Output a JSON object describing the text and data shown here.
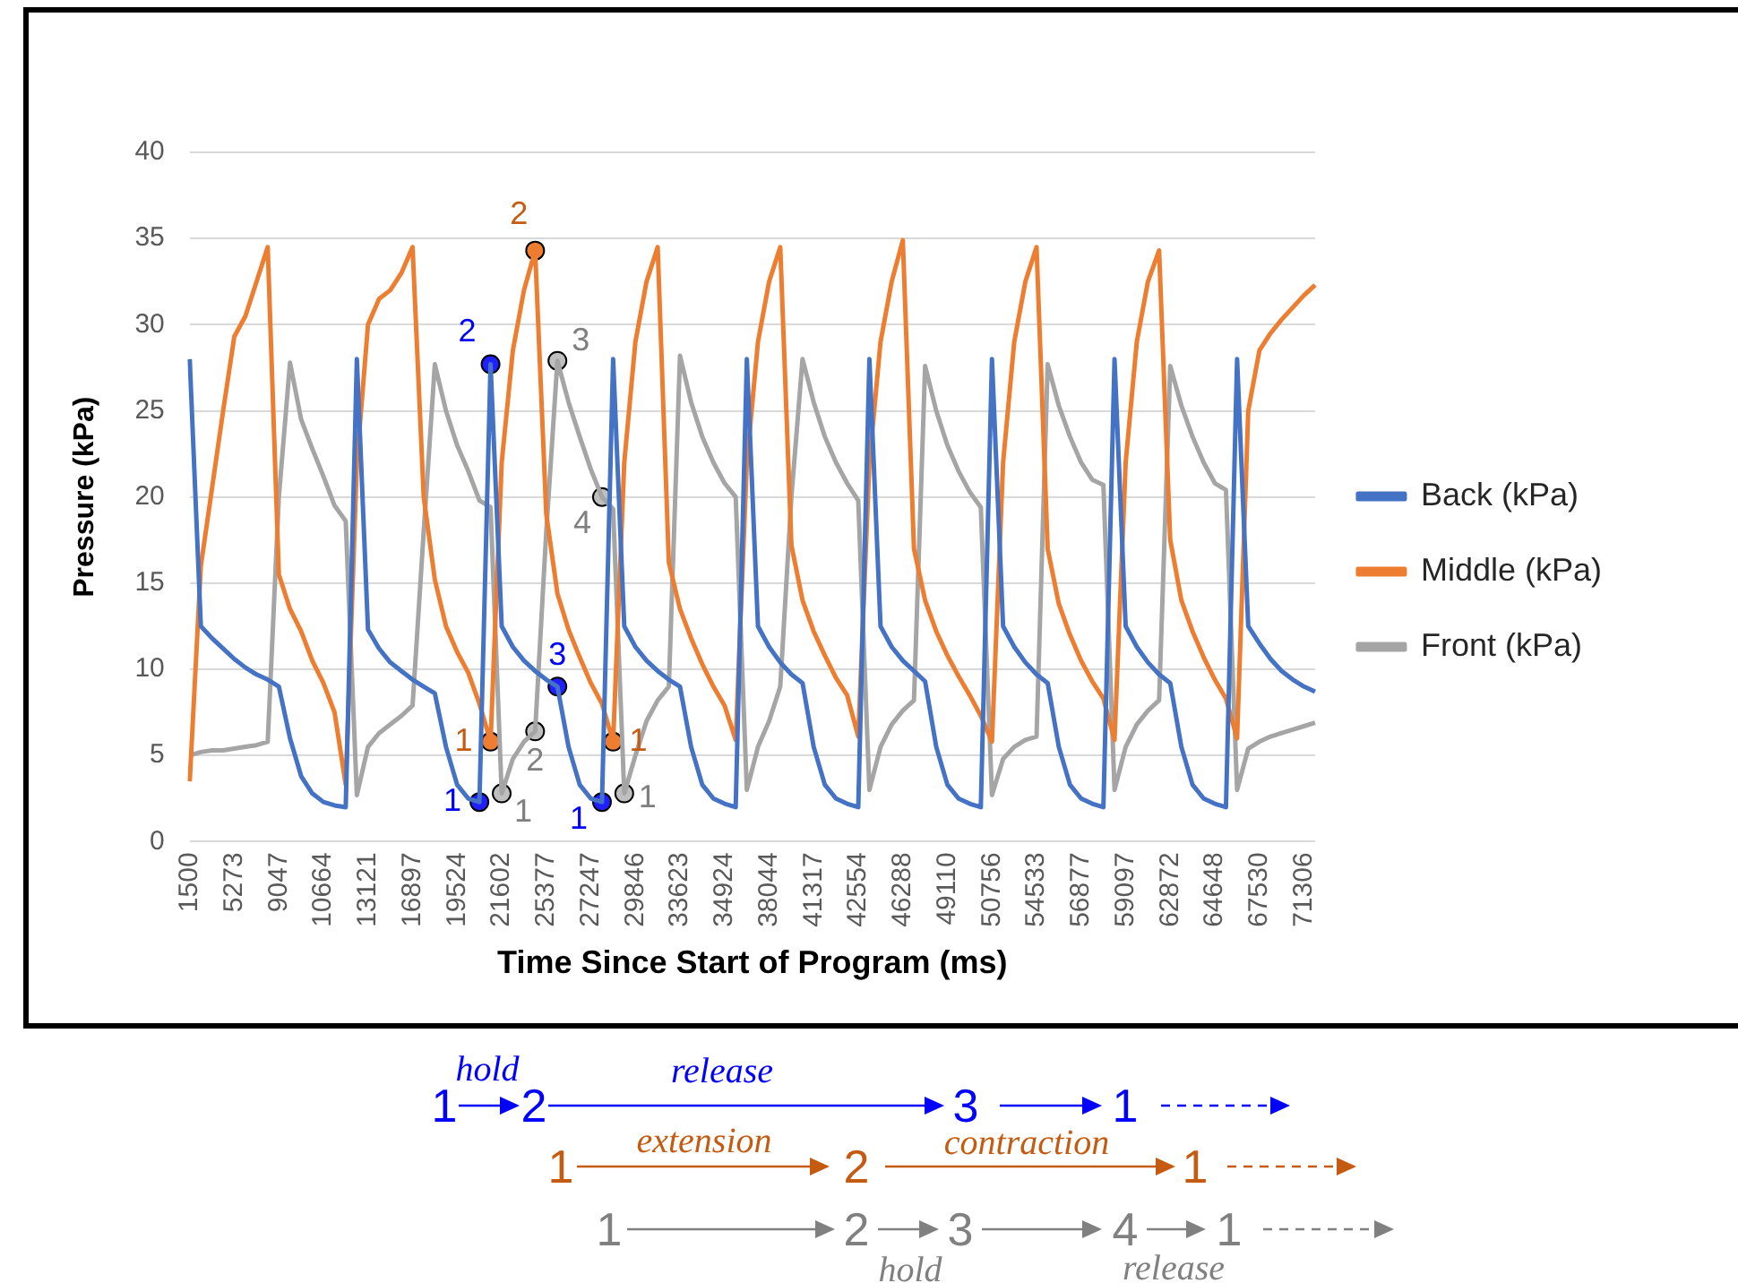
{
  "chart_data": {
    "type": "line",
    "xlabel": "Time Since Start of Program (ms)",
    "ylabel": "Pressure (kPa)",
    "categories": [
      "1500",
      null,
      null,
      null,
      "5273",
      null,
      null,
      null,
      "9047",
      null,
      null,
      null,
      "10664",
      null,
      null,
      null,
      "13121",
      null,
      null,
      null,
      "16897",
      null,
      null,
      null,
      "19524",
      null,
      null,
      null,
      "21602",
      null,
      null,
      null,
      "25377",
      null,
      null,
      null,
      "27247",
      null,
      null,
      null,
      "29846",
      null,
      null,
      null,
      "33623",
      null,
      null,
      null,
      "34924",
      null,
      null,
      null,
      "38044",
      null,
      null,
      null,
      "41317",
      null,
      null,
      null,
      "42554",
      null,
      null,
      null,
      "46288",
      null,
      null,
      null,
      "49110",
      null,
      null,
      null,
      "50756",
      null,
      null,
      null,
      "54533",
      null,
      null,
      null,
      "56877",
      null,
      null,
      null,
      "59097",
      null,
      null,
      null,
      "62872",
      null,
      null,
      null,
      "64648",
      null,
      null,
      null,
      "67530",
      null,
      null,
      null,
      "71306",
      null
    ],
    "series": [
      {
        "name": "Back (kPa)",
        "color": "#4472c4",
        "values": [
          28,
          12.5,
          11.8,
          11.2,
          10.6,
          10.1,
          9.7,
          9.4,
          9.0,
          6,
          3.8,
          2.8,
          2.3,
          2.1,
          2.0,
          28,
          12.3,
          11.2,
          10.4,
          9.9,
          9.4,
          9.0,
          8.6,
          5.5,
          3.3,
          2.5,
          2.3,
          27.7,
          12.5,
          11.3,
          10.5,
          9.9,
          9.4,
          9.0,
          5.5,
          3.3,
          2.5,
          2.3,
          28,
          12.5,
          11.3,
          10.5,
          9.9,
          9.4,
          9.0,
          5.5,
          3.3,
          2.5,
          2.2,
          2.0,
          28,
          12.5,
          11.3,
          10.4,
          9.7,
          9.2,
          5.5,
          3.3,
          2.5,
          2.2,
          2.0,
          28,
          12.5,
          11.3,
          10.5,
          9.9,
          9.3,
          5.5,
          3.3,
          2.5,
          2.2,
          2.0,
          28,
          12.5,
          11.3,
          10.4,
          9.7,
          9.2,
          5.5,
          3.3,
          2.5,
          2.2,
          2.0,
          28,
          12.5,
          11.3,
          10.4,
          9.7,
          9.2,
          5.5,
          3.3,
          2.5,
          2.2,
          2.0,
          28,
          12.5,
          11.5,
          10.6,
          9.9,
          9.4,
          9.0,
          8.7
        ]
      },
      {
        "name": "Middle (kPa)",
        "color": "#ed7d31",
        "values": [
          3.5,
          16,
          20.5,
          25,
          29.3,
          30.5,
          32.5,
          34.5,
          15.5,
          13.5,
          12.2,
          10.5,
          9.2,
          7.5,
          3.3,
          22,
          30,
          31.5,
          32,
          33,
          34.5,
          20,
          15.2,
          12.5,
          11,
          9.8,
          8,
          5.8,
          22,
          28.5,
          32,
          34.3,
          19,
          14.4,
          12.3,
          10.7,
          9.2,
          8,
          5.8,
          22,
          29,
          32.5,
          34.5,
          16.2,
          13.5,
          11.8,
          10.3,
          9,
          7.9,
          5.9,
          22,
          29,
          32.5,
          34.5,
          17.2,
          14,
          12.2,
          10.8,
          9.5,
          8.5,
          6.1,
          22,
          29,
          32.5,
          34.9,
          17,
          14,
          12.2,
          10.8,
          9.6,
          8.5,
          7.3,
          5.8,
          22,
          29,
          32.5,
          34.5,
          17,
          13.8,
          12,
          10.5,
          9.3,
          8.3,
          5.9,
          22,
          29,
          32.5,
          34.3,
          17.5,
          14,
          12.2,
          10.7,
          9.4,
          8.3,
          6,
          25,
          28.5,
          29.5,
          30.3,
          31,
          31.7,
          32.3
        ]
      },
      {
        "name": "Front (kPa)",
        "color": "#a5a5a5",
        "values": [
          5.0,
          5.2,
          5.3,
          5.3,
          5.4,
          5.5,
          5.6,
          5.8,
          20,
          27.8,
          24.5,
          22.8,
          21.2,
          19.5,
          18.6,
          2.7,
          5.5,
          6.3,
          6.8,
          7.3,
          7.9,
          18,
          27.7,
          25,
          23,
          21.5,
          19.8,
          19.4,
          2.8,
          4.8,
          5.8,
          6.4,
          18,
          27.9,
          25.5,
          23.5,
          21.6,
          20,
          19.3,
          2.8,
          5,
          7,
          8.2,
          9,
          28.2,
          25.5,
          23.5,
          22,
          20.8,
          20,
          3,
          5.5,
          7,
          9,
          20,
          28,
          25.5,
          23.5,
          22,
          20.8,
          19.8,
          3,
          5.5,
          6.8,
          7.6,
          8.2,
          27.6,
          25,
          23,
          21.5,
          20.3,
          19.4,
          2.7,
          4.8,
          5.5,
          5.9,
          6.1,
          27.7,
          25.3,
          23.5,
          22,
          21,
          20.7,
          3,
          5.5,
          6.8,
          7.6,
          8.2,
          27.6,
          25.3,
          23.5,
          22,
          20.8,
          20.4,
          3,
          5.4,
          5.8,
          6.1,
          6.3,
          6.5,
          6.7,
          6.9
        ]
      },
      {
        "type": "scatter",
        "marker": "circle",
        "color": "#1f1fff",
        "values": [
          null,
          null,
          null,
          null,
          null,
          null,
          null,
          null,
          null,
          null,
          null,
          null,
          null,
          null,
          null,
          null,
          null,
          null,
          null,
          null,
          null,
          null,
          null,
          null,
          null,
          null,
          2.3,
          27.7,
          null,
          null,
          null,
          null,
          null,
          9.0,
          null,
          null,
          null,
          2.3,
          null,
          null,
          null,
          null,
          null,
          null,
          null,
          null,
          null,
          null,
          null,
          null,
          null,
          null,
          null,
          null,
          null,
          null,
          null,
          null,
          null,
          null,
          null,
          null,
          null,
          null,
          null,
          null,
          null,
          null,
          null,
          null,
          null,
          null,
          null,
          null,
          null,
          null,
          null,
          null,
          null,
          null,
          null,
          null,
          null,
          null,
          null,
          null,
          null,
          null,
          null,
          null,
          null,
          null,
          null,
          null,
          null,
          null,
          null,
          null,
          null,
          null,
          null,
          null
        ]
      },
      {
        "type": "scatter",
        "marker": "circle",
        "color": "#ed7d31",
        "values": [
          null,
          null,
          null,
          null,
          null,
          null,
          null,
          null,
          null,
          null,
          null,
          null,
          null,
          null,
          null,
          null,
          null,
          null,
          null,
          null,
          null,
          null,
          null,
          null,
          null,
          null,
          null,
          5.8,
          null,
          null,
          null,
          34.3,
          null,
          null,
          null,
          null,
          null,
          null,
          5.8,
          null,
          null,
          null,
          null,
          null,
          null,
          null,
          null,
          null,
          null,
          null,
          null,
          null,
          null,
          null,
          null,
          null,
          null,
          null,
          null,
          null,
          null,
          null,
          null,
          null,
          null,
          null,
          null,
          null,
          null,
          null,
          null,
          null,
          null,
          null,
          null,
          null,
          null,
          null,
          null,
          null,
          null,
          null,
          null,
          null,
          null,
          null,
          null,
          null,
          null,
          null,
          null,
          null,
          null,
          null,
          null,
          null,
          null,
          null,
          null,
          null,
          null,
          null
        ]
      },
      {
        "type": "scatter",
        "marker": "circle",
        "color": "#bfbfbf",
        "values": [
          null,
          null,
          null,
          null,
          null,
          null,
          null,
          null,
          null,
          null,
          null,
          null,
          null,
          null,
          null,
          null,
          null,
          null,
          null,
          null,
          null,
          null,
          null,
          null,
          null,
          null,
          null,
          null,
          2.8,
          null,
          null,
          6.4,
          null,
          27.9,
          null,
          null,
          null,
          20,
          null,
          2.8,
          null,
          null,
          null,
          null,
          null,
          null,
          null,
          null,
          null,
          null,
          null,
          null,
          null,
          null,
          null,
          null,
          null,
          null,
          null,
          null,
          null,
          null,
          null,
          null,
          null,
          null,
          null,
          null,
          null,
          null,
          null,
          null,
          null,
          null,
          null,
          null,
          null,
          null,
          null,
          null,
          null,
          null,
          null,
          null,
          null,
          null,
          null,
          null,
          null,
          null,
          null,
          null,
          null,
          null,
          null,
          null,
          null,
          null,
          null,
          null,
          null,
          null
        ]
      }
    ],
    "ylim": [
      0,
      40
    ],
    "yticks": [
      0,
      5,
      10,
      15,
      20,
      25,
      30,
      35,
      40
    ],
    "grid": "y",
    "legend": "right",
    "marker": "none",
    "annotations": [
      "1",
      "2",
      "3",
      "1",
      "1",
      "2",
      "1",
      "1",
      "2",
      "3",
      "4",
      "1",
      "hold",
      "1",
      "2",
      "release",
      "3",
      "1",
      "extension",
      "1",
      "2",
      "contraction",
      "1",
      "1",
      "2",
      "3",
      "4",
      "1",
      "hold",
      "release"
    ]
  }
}
